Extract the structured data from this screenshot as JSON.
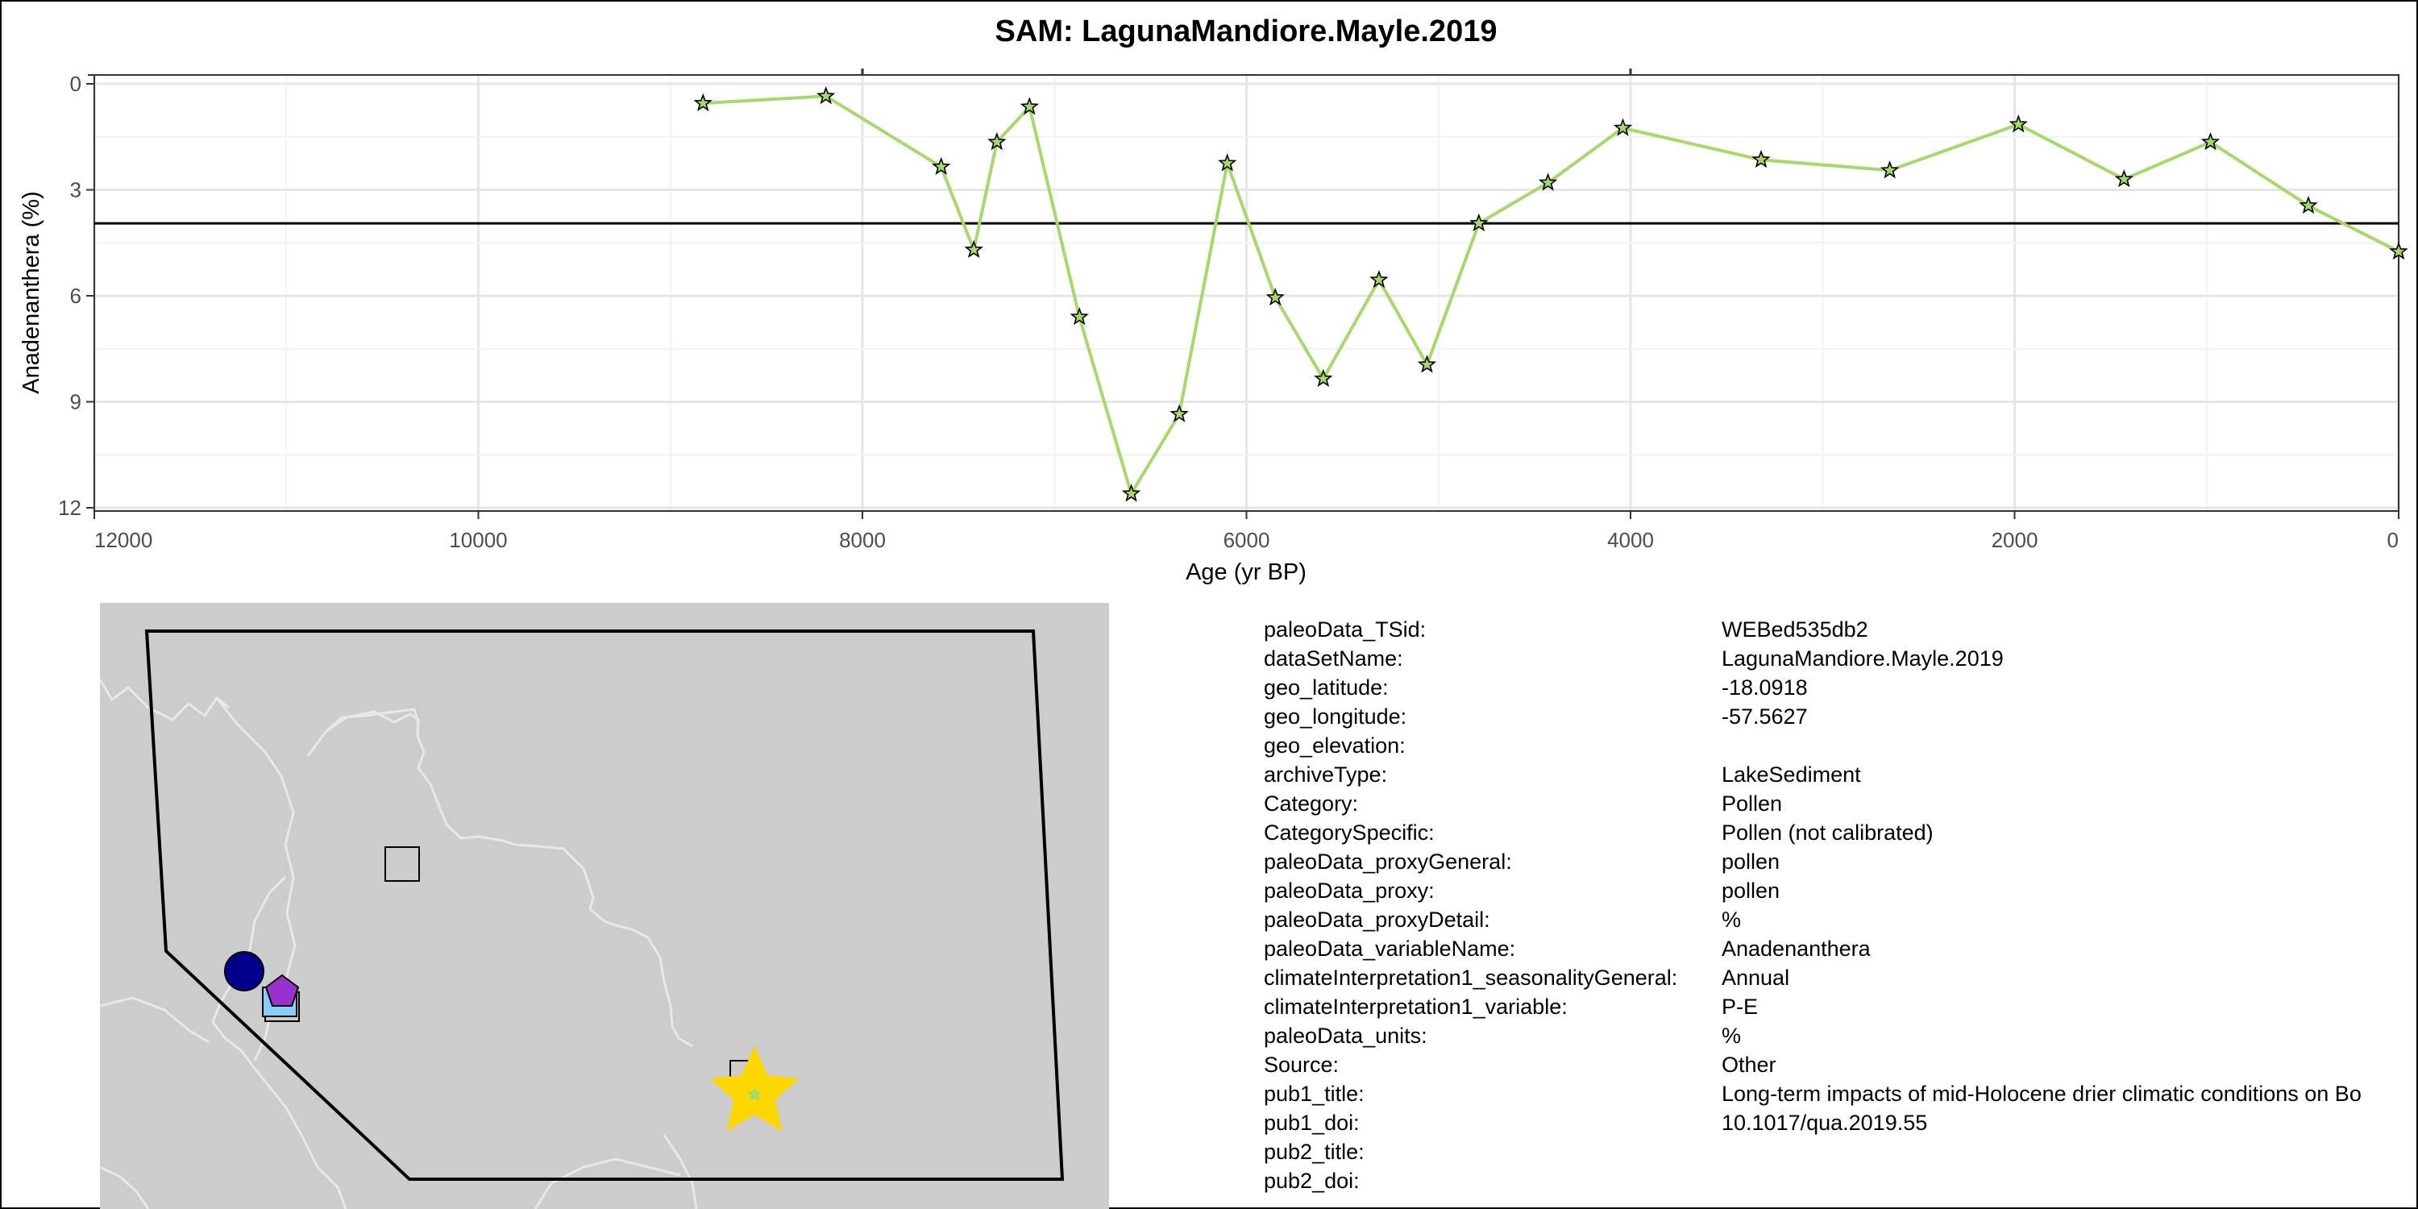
{
  "chart_data": {
    "type": "line",
    "title": "SAM: LagunaMandiore.Mayle.2019",
    "xlabel": "Age (yr BP)",
    "ylabel": "Anadenanthera (%)",
    "xlim": [
      12000,
      0
    ],
    "ylim": [
      12,
      0
    ],
    "x_reversed": true,
    "y_reversed": true,
    "xticks": [
      12000,
      10000,
      8000,
      6000,
      4000,
      2000,
      0
    ],
    "yticks": [
      0,
      3,
      6,
      9,
      12
    ],
    "reference_line": 3.95,
    "line_color": "#a6d96a",
    "marker": "star",
    "series": [
      {
        "name": "Anadenanthera",
        "x": [
          8830,
          8190,
          7590,
          7420,
          7300,
          7130,
          6870,
          6600,
          6350,
          6100,
          5850,
          5600,
          5310,
          5060,
          4790,
          4430,
          4040,
          3320,
          2650,
          1980,
          1430,
          980,
          470,
          0
        ],
        "y": [
          0.55,
          0.35,
          2.35,
          4.7,
          1.65,
          0.65,
          6.6,
          11.6,
          9.35,
          2.25,
          6.05,
          8.35,
          5.55,
          7.95,
          3.95,
          2.8,
          1.25,
          2.15,
          2.45,
          1.15,
          2.7,
          1.65,
          3.45,
          4.75
        ]
      }
    ]
  },
  "map": {
    "land_color": "#cccccc",
    "border_color": "#e8e8e8",
    "region_outline_color": "#000000",
    "markers": [
      {
        "name": "circle",
        "color": "#00008b"
      },
      {
        "name": "pentagon",
        "color": "#9932cc"
      },
      {
        "name": "square",
        "color": "#87cefa"
      },
      {
        "name": "square",
        "color": "#cccccc"
      },
      {
        "name": "star",
        "color": "#ffd700"
      }
    ]
  },
  "metadata": [
    {
      "key": "paleoData_TSid:",
      "value": "WEBed535db2"
    },
    {
      "key": "dataSetName:",
      "value": "LagunaMandiore.Mayle.2019"
    },
    {
      "key": "geo_latitude:",
      "value": "-18.0918"
    },
    {
      "key": "geo_longitude:",
      "value": "-57.5627"
    },
    {
      "key": "geo_elevation:",
      "value": ""
    },
    {
      "key": "archiveType:",
      "value": "LakeSediment"
    },
    {
      "key": "Category:",
      "value": "Pollen"
    },
    {
      "key": "CategorySpecific:",
      "value": "Pollen (not calibrated)"
    },
    {
      "key": "paleoData_proxyGeneral:",
      "value": "pollen"
    },
    {
      "key": "paleoData_proxy:",
      "value": "pollen"
    },
    {
      "key": "paleoData_proxyDetail:",
      "value": "%"
    },
    {
      "key": "paleoData_variableName:",
      "value": "Anadenanthera"
    },
    {
      "key": "climateInterpretation1_seasonalityGeneral:",
      "value": "Annual"
    },
    {
      "key": "climateInterpretation1_variable:",
      "value": "P-E"
    },
    {
      "key": "paleoData_units:",
      "value": "%"
    },
    {
      "key": "Source:",
      "value": "Other"
    },
    {
      "key": "pub1_title:",
      "value": "Long-term impacts of mid-Holocene drier climatic conditions on Bo"
    },
    {
      "key": "pub1_doi:",
      "value": "10.1017/qua.2019.55"
    },
    {
      "key": "pub2_title:",
      "value": ""
    },
    {
      "key": "pub2_doi:",
      "value": ""
    }
  ]
}
